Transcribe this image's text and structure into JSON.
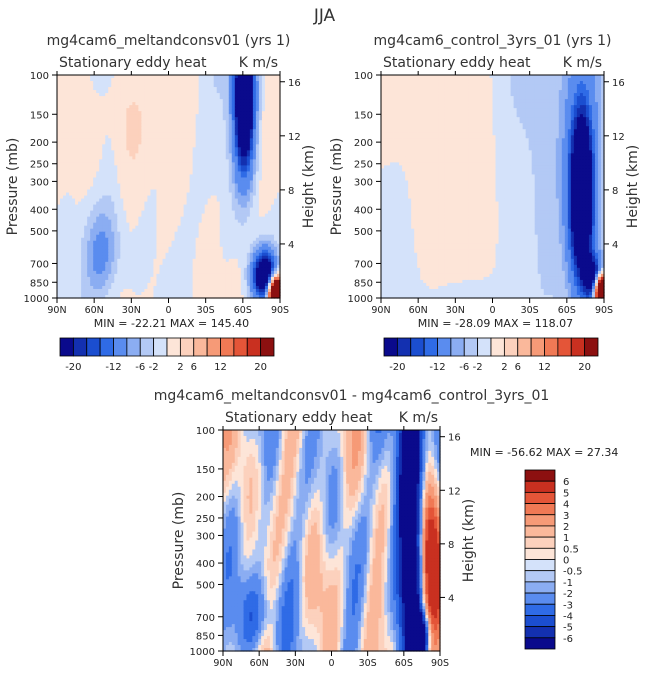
{
  "page_title": "JJA",
  "chart_data": [
    {
      "type": "heatmap",
      "title": "mg4cam6_meltandconsv01 (yrs 1)",
      "left_label": "Stationary eddy heat",
      "units": "K m/s",
      "ylabel": "Pressure (mb)",
      "y2label": "Height (km)",
      "x_ticks": [
        "90N",
        "60N",
        "30N",
        "0",
        "30S",
        "60S",
        "90S"
      ],
      "y_ticks": [
        "100",
        "150",
        "200",
        "250",
        "300",
        "400",
        "500",
        "700",
        "850",
        "1000"
      ],
      "y2_ticks": [
        "16",
        "12",
        "8",
        "4"
      ],
      "stats": "MIN = -22.21   MAX = 145.40",
      "colorbar": {
        "orientation": "horizontal",
        "levels": [
          -20,
          -18,
          -16,
          -14,
          -12,
          -10,
          -8,
          -6,
          -4,
          -2,
          0,
          2,
          4,
          6,
          8,
          10,
          12,
          14,
          16,
          18,
          20
        ],
        "tick_labels": [
          "-20",
          "-12",
          "-6",
          "-2",
          "2",
          "6",
          "12",
          "20"
        ]
      },
      "colors": [
        "#0a0a8c",
        "#1330b0",
        "#1b4ed0",
        "#2f6be6",
        "#5a8cef",
        "#8badf2",
        "#b3c9f5",
        "#d4e2fa",
        "#fde5d8",
        "#fcd1bd",
        "#fab89b",
        "#f69a77",
        "#f07955",
        "#e45538",
        "#c93020",
        "#8c1010"
      ]
    },
    {
      "type": "heatmap",
      "title": "mg4cam6_control_3yrs_01 (yrs 1)",
      "left_label": "Stationary eddy heat",
      "units": "K m/s",
      "ylabel": "Pressure (mb)",
      "y2label": "Height (km)",
      "x_ticks": [
        "90N",
        "60N",
        "30N",
        "0",
        "30S",
        "60S",
        "90S"
      ],
      "y_ticks": [
        "100",
        "150",
        "200",
        "250",
        "300",
        "400",
        "500",
        "700",
        "850",
        "1000"
      ],
      "y2_ticks": [
        "16",
        "12",
        "8",
        "4"
      ],
      "stats": "MIN = -28.09   MAX = 118.07",
      "colorbar": {
        "orientation": "horizontal",
        "levels": [
          -20,
          -18,
          -16,
          -14,
          -12,
          -10,
          -8,
          -6,
          -4,
          -2,
          0,
          2,
          4,
          6,
          8,
          10,
          12,
          14,
          16,
          18,
          20
        ],
        "tick_labels": [
          "-20",
          "-12",
          "-6",
          "-2",
          "2",
          "6",
          "12",
          "20"
        ]
      }
    },
    {
      "type": "heatmap",
      "title": "mg4cam6_meltandconsv01 - mg4cam6_control_3yrs_01",
      "left_label": "Stationary eddy heat",
      "units": "K m/s",
      "ylabel": "Pressure (mb)",
      "y2label": "Height (km)",
      "x_ticks": [
        "90N",
        "60N",
        "30N",
        "0",
        "30S",
        "60S",
        "90S"
      ],
      "y_ticks": [
        "100",
        "150",
        "200",
        "250",
        "300",
        "400",
        "500",
        "700",
        "850",
        "1000"
      ],
      "y2_ticks": [
        "16",
        "12",
        "8",
        "4"
      ],
      "stats": "MIN = -56.62   MAX =   27.34",
      "colorbar": {
        "orientation": "vertical",
        "levels": [
          -6,
          -5,
          -4,
          -3,
          -2,
          -1,
          -0.5,
          0,
          0.5,
          1,
          2,
          3,
          4,
          5,
          6
        ],
        "tick_labels": [
          "6",
          "5",
          "4",
          "3",
          "2",
          "1",
          "0.5",
          "0",
          "-0.5",
          "-1",
          "-2",
          "-3",
          "-4",
          "-5",
          "-6"
        ]
      },
      "colors": [
        "#0a0a8c",
        "#1330b0",
        "#1b4ed0",
        "#2f6be6",
        "#5a8cef",
        "#8badf2",
        "#b3c9f5",
        "#d4e2fa",
        "#fde5d8",
        "#fcd1bd",
        "#fab89b",
        "#f69a77",
        "#f07955",
        "#e45538",
        "#c93020",
        "#8c1010"
      ]
    }
  ]
}
